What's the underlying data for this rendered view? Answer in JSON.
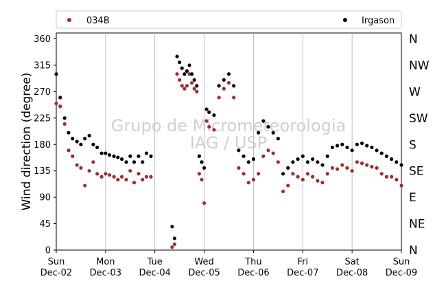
{
  "chart_data": {
    "type": "scatter",
    "ylabel": "Wind direction (degree)",
    "ylim": [
      0,
      370
    ],
    "yticks": [
      0,
      45,
      90,
      135,
      180,
      225,
      270,
      315,
      360
    ],
    "compass_labels": [
      "N",
      "NE",
      "E",
      "SE",
      "S",
      "SW",
      "W",
      "NW",
      "N"
    ],
    "x_ticks": [
      {
        "day": "Sun",
        "date": "Dec-02"
      },
      {
        "day": "Mon",
        "date": "Dec-03"
      },
      {
        "day": "Tue",
        "date": "Dec-04"
      },
      {
        "day": "Wed",
        "date": "Dec-05"
      },
      {
        "day": "Thu",
        "date": "Dec-06"
      },
      {
        "day": "Fri",
        "date": "Dec-07"
      },
      {
        "day": "Sat",
        "date": "Dec-08"
      },
      {
        "day": "Sun",
        "date": "Dec-09"
      }
    ],
    "xlim_days": [
      0,
      7
    ],
    "grid": "vertical",
    "legend_position": "top",
    "watermark": [
      "Grupo de Micrometeorologia",
      "IAG / USP"
    ],
    "series": [
      {
        "name": "034B",
        "color": "#a52a2a",
        "x": [
          0.0,
          0.08,
          0.17,
          0.25,
          0.33,
          0.42,
          0.5,
          0.58,
          0.67,
          0.75,
          0.83,
          0.92,
          1.0,
          1.08,
          1.17,
          1.25,
          1.33,
          1.42,
          1.5,
          1.58,
          1.67,
          1.75,
          1.83,
          1.92,
          2.35,
          2.4,
          2.45,
          2.5,
          2.55,
          2.6,
          2.65,
          2.7,
          2.75,
          2.8,
          2.85,
          2.9,
          2.95,
          3.0,
          3.05,
          3.1,
          3.2,
          3.3,
          3.4,
          3.5,
          3.6,
          3.7,
          3.8,
          3.9,
          4.0,
          4.1,
          4.2,
          4.3,
          4.4,
          4.5,
          4.6,
          4.7,
          4.8,
          4.9,
          5.0,
          5.1,
          5.2,
          5.3,
          5.4,
          5.5,
          5.6,
          5.7,
          5.8,
          5.9,
          6.0,
          6.1,
          6.2,
          6.3,
          6.4,
          6.5,
          6.6,
          6.7,
          6.8,
          6.9,
          7.0
        ],
        "y": [
          250,
          245,
          215,
          170,
          160,
          145,
          140,
          110,
          135,
          150,
          130,
          125,
          130,
          128,
          125,
          120,
          125,
          120,
          135,
          115,
          130,
          120,
          125,
          125,
          5,
          10,
          300,
          290,
          280,
          275,
          280,
          300,
          285,
          275,
          270,
          130,
          120,
          80,
          220,
          210,
          205,
          260,
          275,
          285,
          260,
          140,
          130,
          115,
          120,
          130,
          160,
          170,
          165,
          150,
          100,
          110,
          130,
          125,
          120,
          130,
          125,
          118,
          115,
          130,
          140,
          138,
          145,
          140,
          135,
          150,
          148,
          145,
          142,
          140,
          130,
          125,
          125,
          120,
          110
        ]
      },
      {
        "name": "Irgason",
        "color": "#000000",
        "x": [
          0.0,
          0.08,
          0.17,
          0.25,
          0.33,
          0.42,
          0.5,
          0.58,
          0.67,
          0.75,
          0.83,
          0.92,
          1.0,
          1.08,
          1.17,
          1.25,
          1.33,
          1.42,
          1.5,
          1.58,
          1.67,
          1.75,
          1.83,
          1.92,
          2.35,
          2.4,
          2.45,
          2.5,
          2.55,
          2.6,
          2.65,
          2.7,
          2.75,
          2.8,
          2.85,
          2.9,
          2.95,
          3.0,
          3.05,
          3.1,
          3.2,
          3.3,
          3.4,
          3.5,
          3.6,
          3.7,
          3.8,
          3.9,
          4.0,
          4.1,
          4.2,
          4.3,
          4.4,
          4.5,
          4.6,
          4.7,
          4.8,
          4.9,
          5.0,
          5.1,
          5.2,
          5.3,
          5.4,
          5.5,
          5.6,
          5.7,
          5.8,
          5.9,
          6.0,
          6.1,
          6.2,
          6.3,
          6.4,
          6.5,
          6.6,
          6.7,
          6.8,
          6.9,
          7.0
        ],
        "y": [
          300,
          260,
          225,
          200,
          190,
          185,
          180,
          190,
          195,
          180,
          175,
          165,
          165,
          162,
          160,
          158,
          155,
          150,
          160,
          150,
          160,
          150,
          165,
          160,
          40,
          20,
          330,
          320,
          310,
          300,
          305,
          315,
          300,
          290,
          280,
          160,
          150,
          140,
          240,
          235,
          230,
          280,
          290,
          300,
          280,
          170,
          160,
          150,
          155,
          200,
          220,
          210,
          200,
          190,
          130,
          140,
          150,
          155,
          160,
          150,
          155,
          150,
          145,
          160,
          175,
          178,
          180,
          175,
          170,
          180,
          182,
          178,
          175,
          170,
          165,
          160,
          155,
          150,
          145
        ]
      }
    ]
  }
}
